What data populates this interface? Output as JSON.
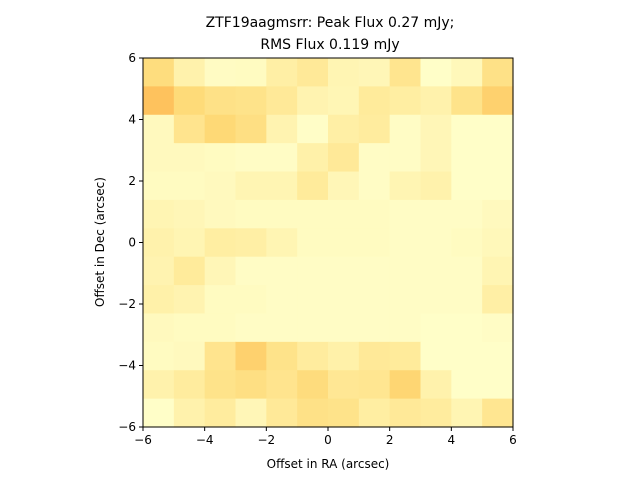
{
  "chart_data": {
    "type": "heatmap",
    "title_lines": [
      "ZTF19aagmsrr: Peak Flux 0.27 mJy;",
      "RMS Flux 0.119 mJy"
    ],
    "xlabel": "Offset in RA (arcsec)",
    "ylabel": "Offset in Dec (arcsec)",
    "xlim": [
      -6,
      6
    ],
    "ylim": [
      -6,
      6
    ],
    "xticks": [
      -6,
      -4,
      -2,
      0,
      2,
      4,
      6
    ],
    "yticks": [
      -6,
      -4,
      -2,
      0,
      2,
      4,
      6
    ],
    "tick_labels_x": [
      "−6",
      "−4",
      "−2",
      "0",
      "2",
      "4",
      "6"
    ],
    "tick_labels_y": [
      "−6",
      "−4",
      "−2",
      "0",
      "2",
      "4",
      "6"
    ],
    "grid": false,
    "colormap": "YlOrRd",
    "color_stops": [
      "#ffffcc",
      "#ffeda0",
      "#fed976",
      "#feb24c",
      "#fd8d3c"
    ],
    "color_range": [
      0,
      1
    ],
    "rows_top_to_bottom": [
      [
        0.45,
        0.18,
        0.05,
        0.06,
        0.22,
        0.3,
        0.14,
        0.12,
        0.35,
        0.02,
        0.1,
        0.4
      ],
      [
        0.65,
        0.48,
        0.4,
        0.38,
        0.3,
        0.16,
        0.13,
        0.28,
        0.24,
        0.18,
        0.38,
        0.55
      ],
      [
        0.08,
        0.36,
        0.5,
        0.42,
        0.16,
        0.03,
        0.22,
        0.26,
        0.04,
        0.12,
        0.02,
        0.02
      ],
      [
        0.08,
        0.08,
        0.06,
        0.04,
        0.04,
        0.2,
        0.3,
        0.04,
        0.04,
        0.12,
        0.02,
        0.02
      ],
      [
        0.06,
        0.06,
        0.08,
        0.14,
        0.14,
        0.28,
        0.12,
        0.04,
        0.14,
        0.18,
        0.02,
        0.02
      ],
      [
        0.14,
        0.12,
        0.08,
        0.06,
        0.06,
        0.06,
        0.06,
        0.06,
        0.04,
        0.04,
        0.04,
        0.08
      ],
      [
        0.18,
        0.14,
        0.24,
        0.22,
        0.14,
        0.06,
        0.06,
        0.06,
        0.04,
        0.04,
        0.06,
        0.1
      ],
      [
        0.16,
        0.28,
        0.12,
        0.04,
        0.04,
        0.04,
        0.04,
        0.04,
        0.04,
        0.04,
        0.04,
        0.14
      ],
      [
        0.2,
        0.16,
        0.06,
        0.06,
        0.04,
        0.04,
        0.04,
        0.04,
        0.04,
        0.04,
        0.04,
        0.22
      ],
      [
        0.08,
        0.06,
        0.06,
        0.04,
        0.04,
        0.04,
        0.04,
        0.04,
        0.04,
        0.02,
        0.02,
        0.04
      ],
      [
        0.06,
        0.08,
        0.36,
        0.55,
        0.38,
        0.26,
        0.2,
        0.3,
        0.28,
        0.02,
        0.02,
        0.02
      ],
      [
        0.18,
        0.26,
        0.38,
        0.42,
        0.36,
        0.46,
        0.32,
        0.34,
        0.52,
        0.18,
        0.02,
        0.02
      ],
      [
        0.02,
        0.18,
        0.26,
        0.12,
        0.3,
        0.4,
        0.38,
        0.24,
        0.3,
        0.26,
        0.14,
        0.34
      ]
    ]
  }
}
